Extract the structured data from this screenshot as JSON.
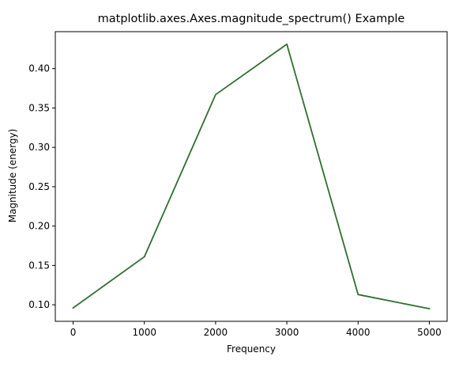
{
  "chart_data": {
    "type": "line",
    "title": "matplotlib.axes.Axes.magnitude_spectrum() Example",
    "xlabel": "Frequency",
    "ylabel": "Magnitude (energy)",
    "xlim": [
      -250,
      5250
    ],
    "ylim": [
      0.079,
      0.447
    ],
    "xticks": [
      0,
      1000,
      2000,
      3000,
      4000,
      5000
    ],
    "xtick_labels": [
      "0",
      "1000",
      "2000",
      "3000",
      "4000",
      "5000"
    ],
    "yticks": [
      0.1,
      0.15,
      0.2,
      0.25,
      0.3,
      0.35,
      0.4
    ],
    "ytick_labels": [
      "0.10",
      "0.15",
      "0.20",
      "0.25",
      "0.30",
      "0.35",
      "0.40"
    ],
    "grid": false,
    "series": [
      {
        "color": "#2f6f2f",
        "x": [
          0,
          1000,
          2000,
          3000,
          4000,
          5000
        ],
        "y": [
          0.096,
          0.161,
          0.367,
          0.431,
          0.113,
          0.095
        ]
      }
    ]
  }
}
